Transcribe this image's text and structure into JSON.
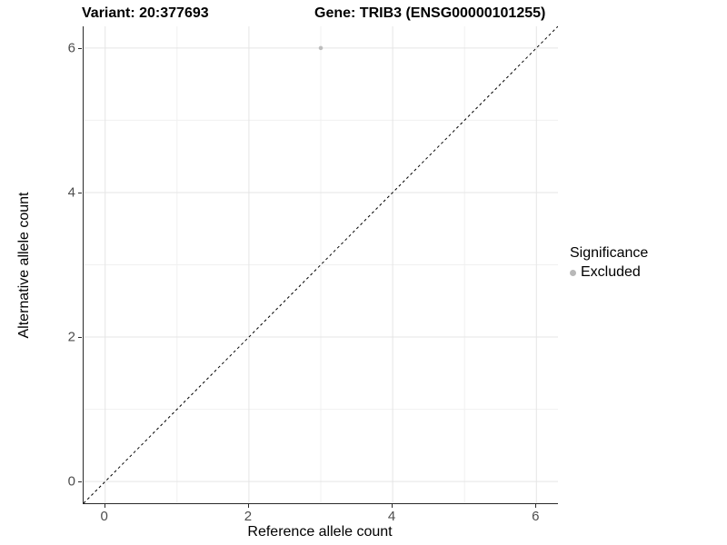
{
  "titles": {
    "variant": "Variant: 20:377693",
    "gene": "Gene: TRIB3 (ENSG00000101255)"
  },
  "legend": {
    "title": "Significance",
    "items": [
      {
        "label": "Excluded",
        "color": "#b8b8b8"
      }
    ]
  },
  "colors": {
    "axis_line": "#2a2a2a",
    "tick_label": "#4d4d4d",
    "grid_major": "#e5e5e5",
    "grid_minor": "#f0f0f0",
    "reference_line": "#000000",
    "point": "#bdbdbd"
  },
  "chart_data": {
    "type": "scatter",
    "title": "Variant: 20:377693   Gene: TRIB3 (ENSG00000101255)",
    "xlabel": "Reference allele count",
    "ylabel": "Alternative allele count",
    "xlim": [
      -0.3,
      6.3
    ],
    "ylim": [
      -0.3,
      6.3
    ],
    "x_ticks": [
      0,
      2,
      4,
      6
    ],
    "y_ticks": [
      0,
      2,
      4,
      6
    ],
    "x_minor": [
      1,
      3,
      5
    ],
    "y_minor": [
      1,
      3,
      5
    ],
    "grid": true,
    "legend_position": "right",
    "series": [
      {
        "name": "Excluded",
        "color": "#bdbdbd",
        "points": [
          {
            "x": 3,
            "y": 6
          }
        ]
      }
    ],
    "reference_line": {
      "type": "identity",
      "style": "dashed",
      "color": "#000000",
      "from": -0.3,
      "to": 6.3
    }
  }
}
